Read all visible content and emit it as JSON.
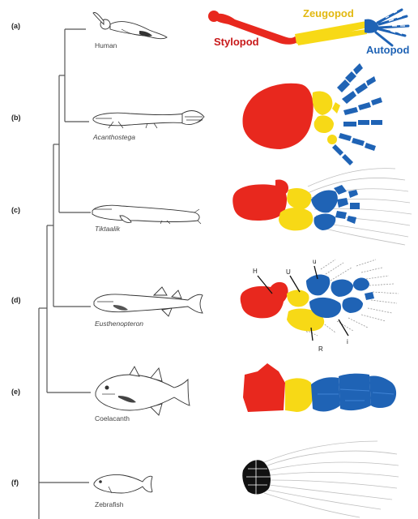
{
  "panels": [
    {
      "id": "a",
      "label": "(a)",
      "taxon": "Human",
      "italic": false
    },
    {
      "id": "b",
      "label": "(b)",
      "taxon": "Acanthostega",
      "italic": true
    },
    {
      "id": "c",
      "label": "(c)",
      "taxon": "Tiktaalik",
      "italic": true
    },
    {
      "id": "d",
      "label": "(d)",
      "taxon": "Eusthenopteron",
      "italic": true
    },
    {
      "id": "e",
      "label": "(e)",
      "taxon": "Coelacanth",
      "italic": false
    },
    {
      "id": "f",
      "label": "(f)",
      "taxon": "Zebrafish",
      "italic": false
    }
  ],
  "bone_labels": {
    "stylopod": "Stylopod",
    "zeugopod": "Zeugopod",
    "autopod": "Autopod"
  },
  "fin_labels": {
    "humerus": "H",
    "ulna": "U",
    "ulnare": "u",
    "radius": "R",
    "intermedium": "i"
  },
  "colors": {
    "stylopod": "#e8281e",
    "zeugopod": "#f7d916",
    "autopod": "#1f63b5",
    "stylopod_text": "#c8191a",
    "zeugopod_text": "#e2b80f",
    "autopod_text": "#1f63b5",
    "fin_rays": "#bfbfbf",
    "zebrafish_fin": "#111111"
  }
}
